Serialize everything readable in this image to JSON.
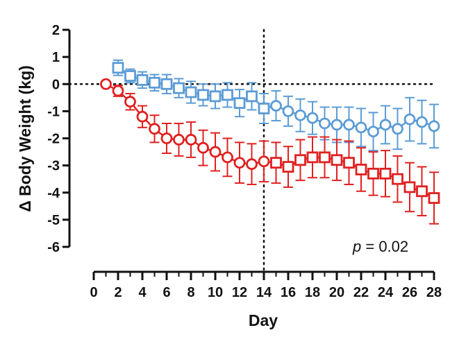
{
  "chart_data": {
    "type": "line",
    "xlabel": "Day",
    "ylabel": "Δ Body Weight (kg)",
    "xlim": [
      0,
      28
    ],
    "ylim": [
      -6,
      2
    ],
    "x_ticks": [
      0,
      2,
      4,
      6,
      8,
      10,
      12,
      14,
      16,
      18,
      20,
      22,
      24,
      26,
      28
    ],
    "y_ticks": [
      -6,
      -5,
      -4,
      -3,
      -2,
      -1,
      0,
      1,
      2
    ],
    "reference_lines": {
      "y": 0,
      "x": 14,
      "style": "dotted"
    },
    "annotation": {
      "italic": "p",
      "rest": " = 0.02"
    },
    "series": [
      {
        "color": "#5b9bd5",
        "points": [
          {
            "x": 2,
            "y": 0.6,
            "err": 0.28,
            "marker": "square"
          },
          {
            "x": 3,
            "y": 0.3,
            "err": 0.25,
            "marker": "square"
          },
          {
            "x": 4,
            "y": 0.15,
            "err": 0.3,
            "marker": "square"
          },
          {
            "x": 5,
            "y": 0.05,
            "err": 0.3,
            "marker": "square"
          },
          {
            "x": 6,
            "y": 0.0,
            "err": 0.35,
            "marker": "square"
          },
          {
            "x": 7,
            "y": -0.15,
            "err": 0.35,
            "marker": "square"
          },
          {
            "x": 8,
            "y": -0.3,
            "err": 0.4,
            "marker": "square"
          },
          {
            "x": 9,
            "y": -0.4,
            "err": 0.4,
            "marker": "square"
          },
          {
            "x": 10,
            "y": -0.45,
            "err": 0.45,
            "marker": "square"
          },
          {
            "x": 11,
            "y": -0.4,
            "err": 0.45,
            "marker": "square"
          },
          {
            "x": 12,
            "y": -0.7,
            "err": 0.5,
            "marker": "square"
          },
          {
            "x": 13,
            "y": -0.45,
            "err": 0.5,
            "marker": "square"
          },
          {
            "x": 14,
            "y": -0.9,
            "err": 0.55,
            "marker": "square"
          },
          {
            "x": 15,
            "y": -0.8,
            "err": 0.55,
            "marker": "circle"
          },
          {
            "x": 16,
            "y": -1.0,
            "err": 0.55,
            "marker": "circle"
          },
          {
            "x": 17,
            "y": -1.15,
            "err": 0.6,
            "marker": "circle"
          },
          {
            "x": 18,
            "y": -1.25,
            "err": 0.6,
            "marker": "circle"
          },
          {
            "x": 19,
            "y": -1.45,
            "err": 0.6,
            "marker": "circle"
          },
          {
            "x": 20,
            "y": -1.5,
            "err": 0.65,
            "marker": "circle"
          },
          {
            "x": 21,
            "y": -1.5,
            "err": 0.65,
            "marker": "circle"
          },
          {
            "x": 22,
            "y": -1.6,
            "err": 0.7,
            "marker": "circle"
          },
          {
            "x": 23,
            "y": -1.75,
            "err": 0.7,
            "marker": "circle"
          },
          {
            "x": 24,
            "y": -1.5,
            "err": 0.7,
            "marker": "circle"
          },
          {
            "x": 25,
            "y": -1.65,
            "err": 0.75,
            "marker": "circle"
          },
          {
            "x": 26,
            "y": -1.3,
            "err": 0.8,
            "marker": "circle"
          },
          {
            "x": 27,
            "y": -1.4,
            "err": 0.8,
            "marker": "circle"
          },
          {
            "x": 28,
            "y": -1.55,
            "err": 0.8,
            "marker": "circle"
          }
        ]
      },
      {
        "color": "#e02020",
        "points": [
          {
            "x": 1,
            "y": 0.0,
            "err": 0.0,
            "marker": "circle"
          },
          {
            "x": 2,
            "y": -0.25,
            "err": 0.2,
            "marker": "circle"
          },
          {
            "x": 3,
            "y": -0.65,
            "err": 0.3,
            "marker": "circle"
          },
          {
            "x": 4,
            "y": -1.2,
            "err": 0.4,
            "marker": "circle"
          },
          {
            "x": 5,
            "y": -1.65,
            "err": 0.5,
            "marker": "circle"
          },
          {
            "x": 6,
            "y": -2.0,
            "err": 0.55,
            "marker": "circle"
          },
          {
            "x": 7,
            "y": -2.05,
            "err": 0.6,
            "marker": "circle"
          },
          {
            "x": 8,
            "y": -2.05,
            "err": 0.65,
            "marker": "circle"
          },
          {
            "x": 9,
            "y": -2.35,
            "err": 0.65,
            "marker": "circle"
          },
          {
            "x": 10,
            "y": -2.5,
            "err": 0.7,
            "marker": "circle"
          },
          {
            "x": 11,
            "y": -2.7,
            "err": 0.7,
            "marker": "circle"
          },
          {
            "x": 12,
            "y": -2.9,
            "err": 0.75,
            "marker": "circle"
          },
          {
            "x": 13,
            "y": -2.95,
            "err": 0.75,
            "marker": "circle"
          },
          {
            "x": 14,
            "y": -2.85,
            "err": 0.75,
            "marker": "circle"
          },
          {
            "x": 15,
            "y": -2.9,
            "err": 0.75,
            "marker": "square"
          },
          {
            "x": 16,
            "y": -3.05,
            "err": 0.75,
            "marker": "square"
          },
          {
            "x": 17,
            "y": -2.8,
            "err": 0.75,
            "marker": "square"
          },
          {
            "x": 18,
            "y": -2.7,
            "err": 0.75,
            "marker": "square"
          },
          {
            "x": 19,
            "y": -2.7,
            "err": 0.75,
            "marker": "square"
          },
          {
            "x": 20,
            "y": -2.8,
            "err": 0.75,
            "marker": "square"
          },
          {
            "x": 21,
            "y": -2.9,
            "err": 0.8,
            "marker": "square"
          },
          {
            "x": 22,
            "y": -3.15,
            "err": 0.8,
            "marker": "square"
          },
          {
            "x": 23,
            "y": -3.3,
            "err": 0.8,
            "marker": "square"
          },
          {
            "x": 24,
            "y": -3.3,
            "err": 0.85,
            "marker": "square"
          },
          {
            "x": 25,
            "y": -3.5,
            "err": 0.85,
            "marker": "square"
          },
          {
            "x": 26,
            "y": -3.8,
            "err": 0.9,
            "marker": "square"
          },
          {
            "x": 27,
            "y": -3.95,
            "err": 0.9,
            "marker": "square"
          },
          {
            "x": 28,
            "y": -4.2,
            "err": 0.95,
            "marker": "square"
          }
        ]
      }
    ]
  }
}
